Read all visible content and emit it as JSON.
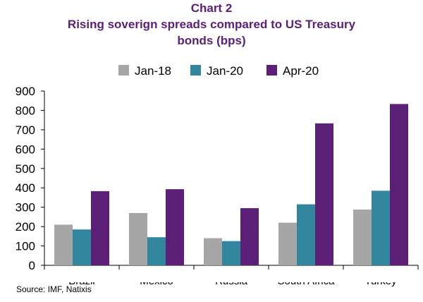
{
  "source": "Source: IMF, Natixis",
  "chart_data": {
    "type": "bar",
    "title_lines": [
      "Chart 2",
      "Rising soverign spreads compared to US Treasury",
      "bonds (bps)"
    ],
    "categories": [
      "Brazil",
      "Mexico",
      "Russia",
      "South Africa",
      "Turkey"
    ],
    "series": [
      {
        "name": "Jan-18",
        "color": "#a6a6a6",
        "values": [
          210,
          270,
          140,
          220,
          288
        ]
      },
      {
        "name": "Jan-20",
        "color": "#31859c",
        "values": [
          185,
          145,
          125,
          315,
          385
        ]
      },
      {
        "name": "Apr-20",
        "color": "#5b1f78",
        "values": [
          383,
          393,
          295,
          733,
          833
        ]
      }
    ],
    "ylim": [
      0,
      900
    ],
    "yticks": [
      0,
      100,
      200,
      300,
      400,
      500,
      600,
      700,
      800,
      900
    ],
    "grid": false,
    "legend_position": "top",
    "title_color": "#5b1f78"
  }
}
